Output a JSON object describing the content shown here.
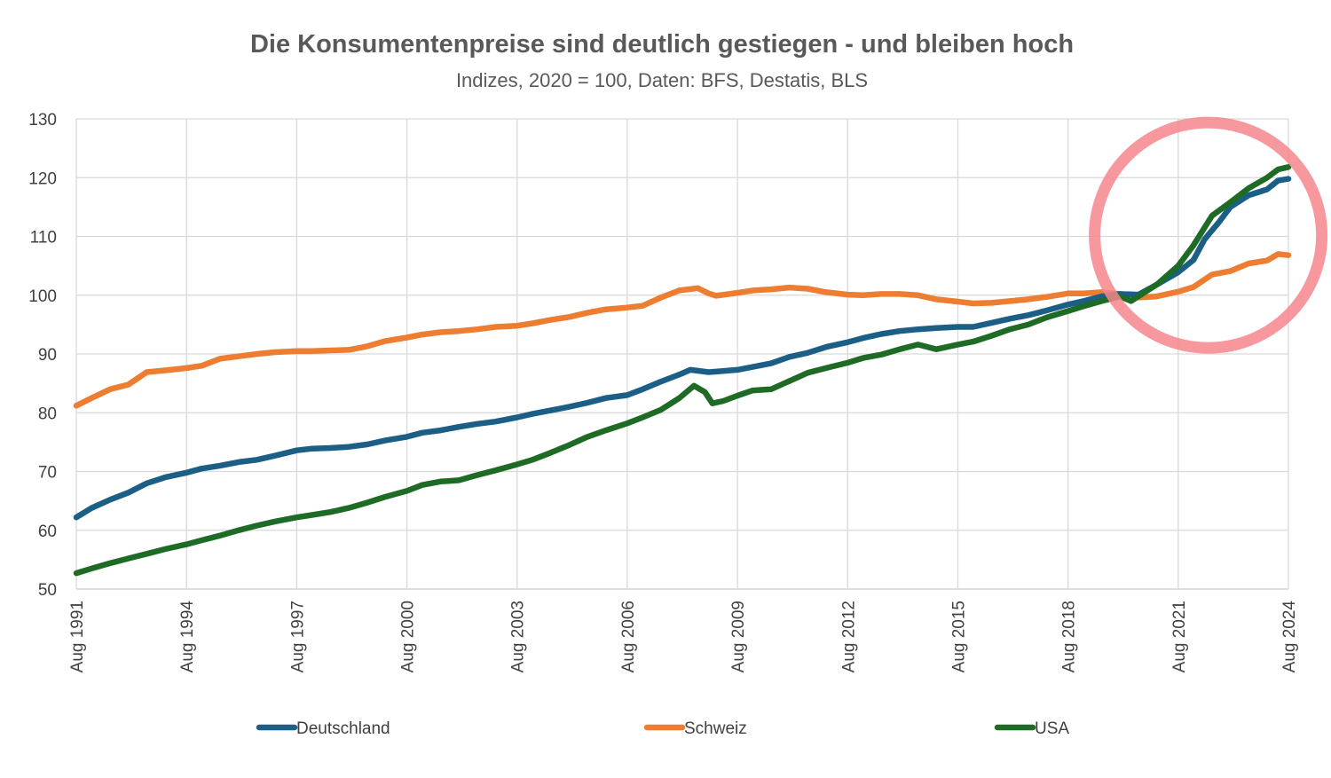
{
  "chart_data": {
    "type": "line",
    "title": "Die Konsumentenpreise sind deutlich gestiegen - und bleiben hoch",
    "subtitle": "Indizes, 2020 = 100, Daten: BFS, Destatis, BLS",
    "xlabel": "",
    "ylabel": "",
    "ylim": [
      50,
      130
    ],
    "yticks": [
      50,
      60,
      70,
      80,
      90,
      100,
      110,
      120,
      130
    ],
    "xlim": [
      1991.583,
      2024.583
    ],
    "xticks": [
      {
        "x": 1991.583,
        "label": "Aug 1991"
      },
      {
        "x": 1994.583,
        "label": "Aug 1994"
      },
      {
        "x": 1997.583,
        "label": "Aug 1997"
      },
      {
        "x": 2000.583,
        "label": "Aug 2000"
      },
      {
        "x": 2003.583,
        "label": "Aug 2003"
      },
      {
        "x": 2006.583,
        "label": "Aug 2006"
      },
      {
        "x": 2009.583,
        "label": "Aug 2009"
      },
      {
        "x": 2012.583,
        "label": "Aug 2012"
      },
      {
        "x": 2015.583,
        "label": "Aug 2015"
      },
      {
        "x": 2018.583,
        "label": "Aug 2018"
      },
      {
        "x": 2021.583,
        "label": "Aug 2021"
      },
      {
        "x": 2024.583,
        "label": "Aug 2024"
      }
    ],
    "grid": true,
    "legend": "bottom",
    "series": [
      {
        "name": "Schweiz",
        "color": "#ED7D31",
        "points": [
          [
            1991.583,
            81.2
          ],
          [
            1992.0,
            82.5
          ],
          [
            1992.5,
            84.0
          ],
          [
            1993.0,
            84.8
          ],
          [
            1993.5,
            86.9
          ],
          [
            1994.0,
            87.2
          ],
          [
            1994.583,
            87.6
          ],
          [
            1995.0,
            88.0
          ],
          [
            1995.5,
            89.2
          ],
          [
            1996.0,
            89.6
          ],
          [
            1996.5,
            90.0
          ],
          [
            1997.0,
            90.3
          ],
          [
            1997.583,
            90.5
          ],
          [
            1998.0,
            90.5
          ],
          [
            1998.5,
            90.6
          ],
          [
            1999.0,
            90.7
          ],
          [
            1999.5,
            91.3
          ],
          [
            2000.0,
            92.2
          ],
          [
            2000.583,
            92.8
          ],
          [
            2001.0,
            93.3
          ],
          [
            2001.5,
            93.7
          ],
          [
            2002.0,
            93.9
          ],
          [
            2002.5,
            94.2
          ],
          [
            2003.0,
            94.6
          ],
          [
            2003.583,
            94.8
          ],
          [
            2004.0,
            95.2
          ],
          [
            2004.5,
            95.8
          ],
          [
            2005.0,
            96.3
          ],
          [
            2005.5,
            97.0
          ],
          [
            2006.0,
            97.6
          ],
          [
            2006.583,
            97.9
          ],
          [
            2007.0,
            98.2
          ],
          [
            2007.5,
            99.6
          ],
          [
            2008.0,
            100.8
          ],
          [
            2008.5,
            101.2
          ],
          [
            2008.8,
            100.3
          ],
          [
            2009.0,
            99.9
          ],
          [
            2009.583,
            100.4
          ],
          [
            2010.0,
            100.8
          ],
          [
            2010.5,
            101.0
          ],
          [
            2011.0,
            101.3
          ],
          [
            2011.5,
            101.1
          ],
          [
            2012.0,
            100.5
          ],
          [
            2012.583,
            100.1
          ],
          [
            2013.0,
            100.0
          ],
          [
            2013.5,
            100.2
          ],
          [
            2014.0,
            100.2
          ],
          [
            2014.5,
            100.0
          ],
          [
            2015.0,
            99.3
          ],
          [
            2015.583,
            98.9
          ],
          [
            2016.0,
            98.6
          ],
          [
            2016.5,
            98.7
          ],
          [
            2017.0,
            99.0
          ],
          [
            2017.5,
            99.3
          ],
          [
            2018.0,
            99.7
          ],
          [
            2018.583,
            100.3
          ],
          [
            2019.0,
            100.3
          ],
          [
            2019.5,
            100.5
          ],
          [
            2020.0,
            100.2
          ],
          [
            2020.5,
            99.6
          ],
          [
            2021.0,
            99.8
          ],
          [
            2021.583,
            100.6
          ],
          [
            2022.0,
            101.4
          ],
          [
            2022.5,
            103.5
          ],
          [
            2023.0,
            104.1
          ],
          [
            2023.5,
            105.4
          ],
          [
            2024.0,
            105.9
          ],
          [
            2024.3,
            107.0
          ],
          [
            2024.583,
            106.8
          ]
        ]
      },
      {
        "name": "Deutschland",
        "color": "#1B5E86",
        "points": [
          [
            1991.583,
            62.2
          ],
          [
            1992.0,
            63.8
          ],
          [
            1992.5,
            65.2
          ],
          [
            1993.0,
            66.4
          ],
          [
            1993.5,
            68.0
          ],
          [
            1994.0,
            69.0
          ],
          [
            1994.583,
            69.8
          ],
          [
            1995.0,
            70.5
          ],
          [
            1995.5,
            71.0
          ],
          [
            1996.0,
            71.6
          ],
          [
            1996.5,
            72.0
          ],
          [
            1997.0,
            72.7
          ],
          [
            1997.583,
            73.6
          ],
          [
            1998.0,
            73.9
          ],
          [
            1998.5,
            74.0
          ],
          [
            1999.0,
            74.2
          ],
          [
            1999.5,
            74.6
          ],
          [
            2000.0,
            75.3
          ],
          [
            2000.583,
            75.9
          ],
          [
            2001.0,
            76.6
          ],
          [
            2001.5,
            77.0
          ],
          [
            2002.0,
            77.6
          ],
          [
            2002.5,
            78.1
          ],
          [
            2003.0,
            78.5
          ],
          [
            2003.583,
            79.2
          ],
          [
            2004.0,
            79.8
          ],
          [
            2004.5,
            80.4
          ],
          [
            2005.0,
            81.0
          ],
          [
            2005.5,
            81.7
          ],
          [
            2006.0,
            82.5
          ],
          [
            2006.583,
            83.0
          ],
          [
            2007.0,
            84.0
          ],
          [
            2007.5,
            85.3
          ],
          [
            2008.0,
            86.5
          ],
          [
            2008.3,
            87.3
          ],
          [
            2008.8,
            86.9
          ],
          [
            2009.0,
            87.0
          ],
          [
            2009.583,
            87.3
          ],
          [
            2010.0,
            87.8
          ],
          [
            2010.5,
            88.4
          ],
          [
            2011.0,
            89.5
          ],
          [
            2011.5,
            90.2
          ],
          [
            2012.0,
            91.2
          ],
          [
            2012.583,
            92.0
          ],
          [
            2013.0,
            92.7
          ],
          [
            2013.5,
            93.4
          ],
          [
            2014.0,
            93.9
          ],
          [
            2014.5,
            94.2
          ],
          [
            2015.0,
            94.4
          ],
          [
            2015.583,
            94.6
          ],
          [
            2016.0,
            94.6
          ],
          [
            2016.5,
            95.3
          ],
          [
            2017.0,
            96.0
          ],
          [
            2017.5,
            96.6
          ],
          [
            2018.0,
            97.4
          ],
          [
            2018.583,
            98.4
          ],
          [
            2019.0,
            99.0
          ],
          [
            2019.5,
            99.8
          ],
          [
            2020.0,
            100.2
          ],
          [
            2020.5,
            100.1
          ],
          [
            2021.0,
            101.8
          ],
          [
            2021.583,
            103.9
          ],
          [
            2022.0,
            106.0
          ],
          [
            2022.3,
            109.5
          ],
          [
            2022.7,
            112.5
          ],
          [
            2023.0,
            115.0
          ],
          [
            2023.5,
            117.0
          ],
          [
            2024.0,
            118.0
          ],
          [
            2024.3,
            119.5
          ],
          [
            2024.583,
            119.8
          ]
        ]
      },
      {
        "name": "USA",
        "color": "#1E6B25",
        "points": [
          [
            1991.583,
            52.7
          ],
          [
            1992.0,
            53.5
          ],
          [
            1992.5,
            54.4
          ],
          [
            1993.0,
            55.2
          ],
          [
            1993.5,
            56.0
          ],
          [
            1994.0,
            56.8
          ],
          [
            1994.583,
            57.6
          ],
          [
            1995.0,
            58.3
          ],
          [
            1995.5,
            59.1
          ],
          [
            1996.0,
            60.0
          ],
          [
            1996.5,
            60.8
          ],
          [
            1997.0,
            61.5
          ],
          [
            1997.583,
            62.2
          ],
          [
            1998.0,
            62.6
          ],
          [
            1998.5,
            63.1
          ],
          [
            1999.0,
            63.8
          ],
          [
            1999.5,
            64.7
          ],
          [
            2000.0,
            65.7
          ],
          [
            2000.583,
            66.7
          ],
          [
            2001.0,
            67.7
          ],
          [
            2001.5,
            68.3
          ],
          [
            2002.0,
            68.5
          ],
          [
            2002.5,
            69.4
          ],
          [
            2003.0,
            70.2
          ],
          [
            2003.583,
            71.2
          ],
          [
            2004.0,
            72.0
          ],
          [
            2004.5,
            73.2
          ],
          [
            2005.0,
            74.5
          ],
          [
            2005.5,
            75.9
          ],
          [
            2006.0,
            77.0
          ],
          [
            2006.583,
            78.2
          ],
          [
            2007.0,
            79.2
          ],
          [
            2007.5,
            80.5
          ],
          [
            2008.0,
            82.5
          ],
          [
            2008.4,
            84.6
          ],
          [
            2008.7,
            83.5
          ],
          [
            2008.9,
            81.6
          ],
          [
            2009.2,
            82.0
          ],
          [
            2009.583,
            82.9
          ],
          [
            2010.0,
            83.8
          ],
          [
            2010.5,
            84.0
          ],
          [
            2011.0,
            85.4
          ],
          [
            2011.5,
            86.8
          ],
          [
            2012.0,
            87.6
          ],
          [
            2012.583,
            88.5
          ],
          [
            2013.0,
            89.3
          ],
          [
            2013.5,
            89.9
          ],
          [
            2014.0,
            90.8
          ],
          [
            2014.5,
            91.6
          ],
          [
            2015.0,
            90.8
          ],
          [
            2015.583,
            91.6
          ],
          [
            2016.0,
            92.1
          ],
          [
            2016.5,
            93.1
          ],
          [
            2017.0,
            94.2
          ],
          [
            2017.5,
            95.0
          ],
          [
            2018.0,
            96.2
          ],
          [
            2018.583,
            97.3
          ],
          [
            2019.0,
            98.1
          ],
          [
            2019.5,
            99.0
          ],
          [
            2020.0,
            99.8
          ],
          [
            2020.3,
            99.0
          ],
          [
            2020.6,
            100.2
          ],
          [
            2021.0,
            101.8
          ],
          [
            2021.583,
            105.0
          ],
          [
            2022.0,
            108.5
          ],
          [
            2022.5,
            113.5
          ],
          [
            2023.0,
            115.8
          ],
          [
            2023.5,
            118.2
          ],
          [
            2024.0,
            120.0
          ],
          [
            2024.3,
            121.4
          ],
          [
            2024.583,
            121.8
          ]
        ]
      }
    ],
    "legend_order": [
      "Deutschland",
      "Schweiz",
      "USA"
    ],
    "annotation": {
      "type": "circle",
      "color": "#F4868C"
    }
  }
}
